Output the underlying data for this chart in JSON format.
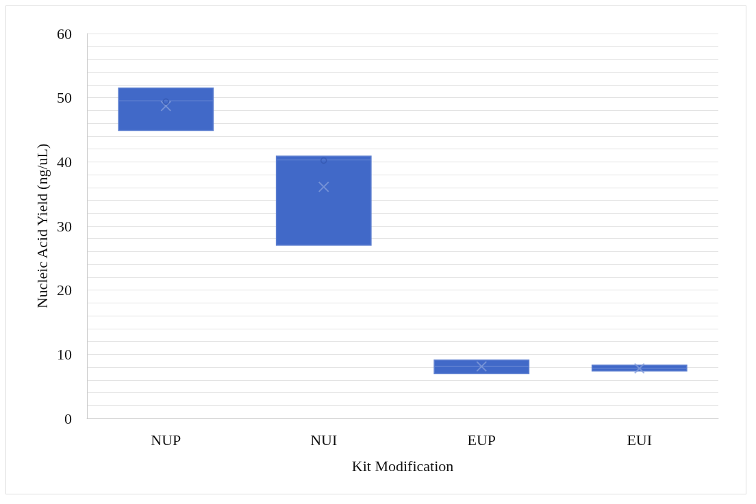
{
  "chart_data": {
    "type": "box",
    "xlabel": "Kit Modification",
    "ylabel": "Nucleic Acid Yield (ng/uL)",
    "categories": [
      "NUP",
      "NUI",
      "EUP",
      "EUI"
    ],
    "series": [
      {
        "color": "#4169c8",
        "boxes": [
          {
            "low": 44.9,
            "q1": 44.9,
            "median": 49.5,
            "q3": 51.5,
            "high": 51.5,
            "mean": 48.7
          },
          {
            "low": 27.0,
            "q1": 27.0,
            "median": 40.3,
            "q3": 40.9,
            "high": 40.9,
            "mean": 36.1
          },
          {
            "low": 7.0,
            "q1": 7.0,
            "median": 8.1,
            "q3": 9.1,
            "high": 9.1,
            "mean": 8.1
          },
          {
            "low": 7.4,
            "q1": 7.4,
            "median": 7.8,
            "q3": 8.3,
            "high": 8.3,
            "mean": 7.8
          }
        ]
      },
      {
        "type": "scatter",
        "color": "#3558b0",
        "marker": "circle",
        "x": [
          "NUP",
          "NUI"
        ],
        "values": [
          49.4,
          40.2
        ]
      }
    ],
    "ylim": [
      0,
      60
    ],
    "yticks": [
      0,
      {
        "value": 2,
        "label": null
      },
      {
        "value": 4,
        "label": null
      },
      {
        "value": 6,
        "label": null
      },
      {
        "value": 8,
        "label": null
      },
      10,
      {
        "value": 12,
        "label": null
      },
      {
        "value": 14,
        "label": null
      },
      {
        "value": 16,
        "label": null
      },
      {
        "value": 18,
        "label": null
      },
      20,
      {
        "value": 22,
        "label": null
      },
      {
        "value": 24,
        "label": null
      },
      {
        "value": 26,
        "label": null
      },
      {
        "value": 28,
        "label": null
      },
      30,
      {
        "value": 32,
        "label": null
      },
      {
        "value": 34,
        "label": null
      },
      {
        "value": 36,
        "label": null
      },
      {
        "value": 38,
        "label": null
      },
      40,
      {
        "value": 42,
        "label": null
      },
      {
        "value": 44,
        "label": null
      },
      {
        "value": 46,
        "label": null
      },
      {
        "value": 48,
        "label": null
      },
      50,
      {
        "value": 52,
        "label": null
      },
      {
        "value": 54,
        "label": null
      },
      {
        "value": 56,
        "label": null
      },
      {
        "value": 58,
        "label": null
      },
      60
    ],
    "grid": "y"
  }
}
